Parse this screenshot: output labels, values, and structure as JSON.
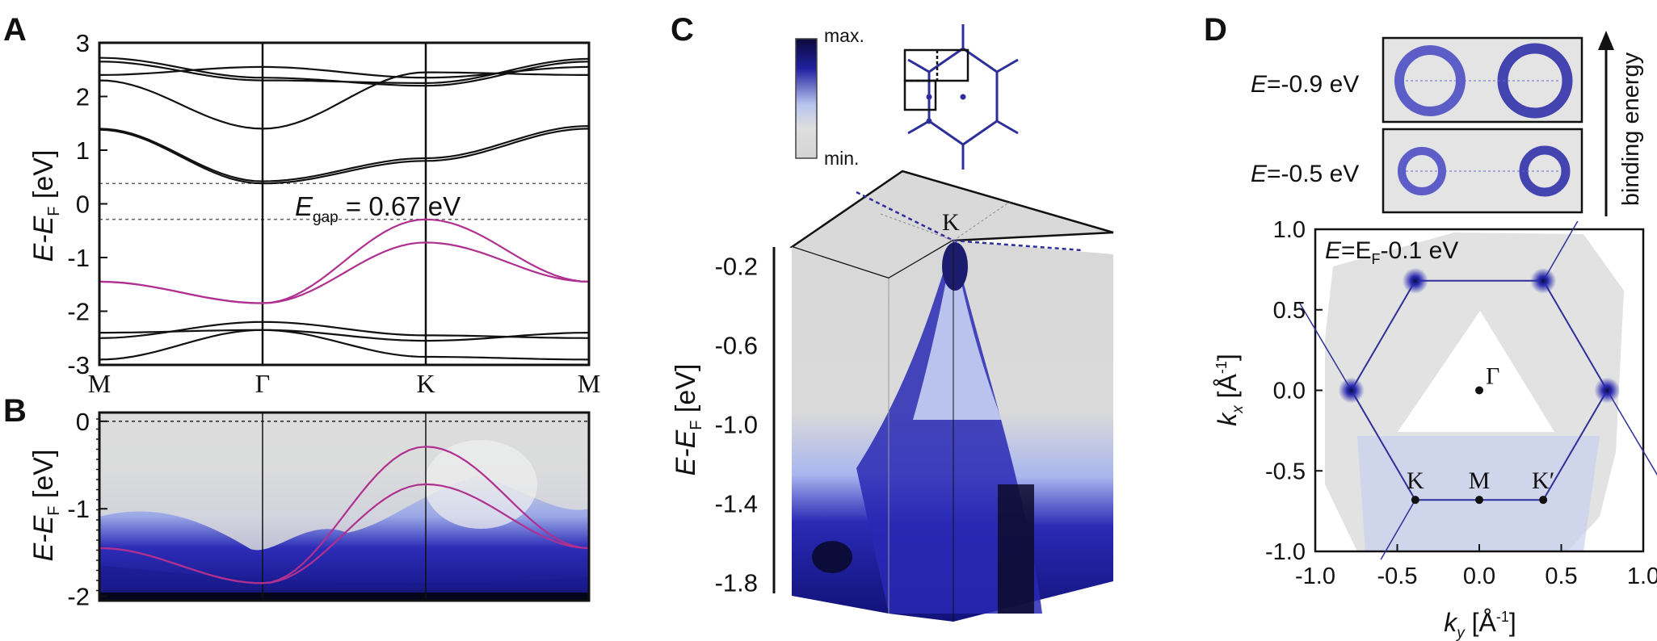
{
  "panels": {
    "a": "A",
    "b": "B",
    "c": "C",
    "d": "D"
  },
  "colors": {
    "conduction": "#111111",
    "valence": "#b0308f",
    "arpes": "#2b2bb0",
    "bz": "#2f2f9a"
  },
  "chart_data": [
    {
      "panel": "A",
      "type": "line",
      "ylabel": {
        "main": "E-E",
        "sub": "F",
        "unit": " [eV]"
      },
      "ylim": [
        -3,
        3
      ],
      "yticks": [
        "3",
        "2",
        "1",
        "0",
        "-1",
        "-2",
        "-3"
      ],
      "kpath": [
        "M",
        "Γ",
        "K",
        "M"
      ],
      "x": [
        0,
        1,
        2,
        3
      ],
      "gap_annotation": {
        "prefix": "E",
        "sub": "gap",
        "value": " = 0.67 eV"
      },
      "gap_lines": [
        0.38,
        -0.29
      ],
      "series": [
        {
          "group": "conduction",
          "values": [
            2.72,
            2.35,
            2.2,
            2.65
          ]
        },
        {
          "group": "conduction",
          "values": [
            2.65,
            2.3,
            2.25,
            2.7
          ]
        },
        {
          "group": "conduction",
          "values": [
            2.4,
            2.55,
            2.35,
            2.55
          ]
        },
        {
          "group": "conduction",
          "values": [
            2.3,
            1.4,
            2.45,
            2.4
          ]
        },
        {
          "group": "conduction",
          "values": [
            1.38,
            0.38,
            0.8,
            1.4
          ]
        },
        {
          "group": "conduction",
          "values": [
            1.4,
            0.42,
            0.85,
            1.45
          ]
        },
        {
          "group": "valence",
          "values": [
            -1.45,
            -1.85,
            -0.29,
            -1.45
          ]
        },
        {
          "group": "valence",
          "values": [
            -1.45,
            -1.85,
            -0.72,
            -1.45
          ]
        },
        {
          "group": "deep",
          "values": [
            -2.4,
            -2.35,
            -2.55,
            -2.4
          ]
        },
        {
          "group": "deep",
          "values": [
            -2.5,
            -2.2,
            -2.45,
            -2.5
          ]
        },
        {
          "group": "deep",
          "values": [
            -2.9,
            -2.35,
            -2.85,
            -2.9
          ]
        }
      ]
    },
    {
      "panel": "B",
      "type": "heatmap",
      "ylabel": {
        "main": "E-E",
        "sub": "F",
        "unit": " [eV]"
      },
      "ylim": [
        -2.05,
        0.1
      ],
      "yticks": [
        "0",
        "-1",
        "-2"
      ],
      "kpath": [
        "M",
        "Γ",
        "K",
        "M"
      ],
      "overlay_bands": [
        [
          -1.45,
          -1.85,
          -0.29,
          -1.45
        ],
        [
          -1.45,
          -1.85,
          -0.72,
          -1.45
        ]
      ]
    },
    {
      "panel": "C",
      "type": "heatmap",
      "colorbar": {
        "max": "max.",
        "min": "min."
      },
      "ylabel": {
        "main": "E-E",
        "sub": "F",
        "unit": " [eV]"
      },
      "yticks": [
        "-0.2",
        "-0.6",
        "-1.0",
        "-1.4",
        "-1.8"
      ],
      "ylim": [
        -1.9,
        -0.15
      ],
      "point_label": "K"
    },
    {
      "panel": "D",
      "type": "heatmap",
      "slices": [
        {
          "prefix": "E",
          "value": "=-0.9 eV"
        },
        {
          "prefix": "E",
          "value": "=-0.5 eV"
        }
      ],
      "arrow_label": "binding energy",
      "map_label": {
        "prefix": "E",
        "mid": "=E",
        "sub": "F",
        "value": "-0.1 eV"
      },
      "xlabel": {
        "main": "k",
        "sub": "y",
        "unit": " [Å",
        "sup": "-1",
        "close": "]"
      },
      "ylabel": {
        "main": "k",
        "sub": "x",
        "unit": " [Å",
        "sup": "-1",
        "close": "]"
      },
      "xlim": [
        -1.0,
        1.0
      ],
      "ylim": [
        -1.0,
        1.0
      ],
      "xticks": [
        "-1.0",
        "-0.5",
        "0.0",
        "0.5",
        "1.0"
      ],
      "yticks": [
        "1.0",
        "0.5",
        "0.0",
        "-0.5",
        "-1.0"
      ],
      "points": [
        {
          "label": "Γ",
          "x": 0.0,
          "y": 0.0
        },
        {
          "label": "K",
          "x": -0.39,
          "y": -0.68
        },
        {
          "label": "M",
          "x": 0.0,
          "y": -0.68
        },
        {
          "label": "K′",
          "x": 0.39,
          "y": -0.68
        }
      ],
      "hot_spots": [
        {
          "x": -0.39,
          "y": 0.68
        },
        {
          "x": 0.39,
          "y": 0.68
        },
        {
          "x": -0.78,
          "y": 0.0
        },
        {
          "x": 0.78,
          "y": 0.0
        }
      ]
    }
  ]
}
